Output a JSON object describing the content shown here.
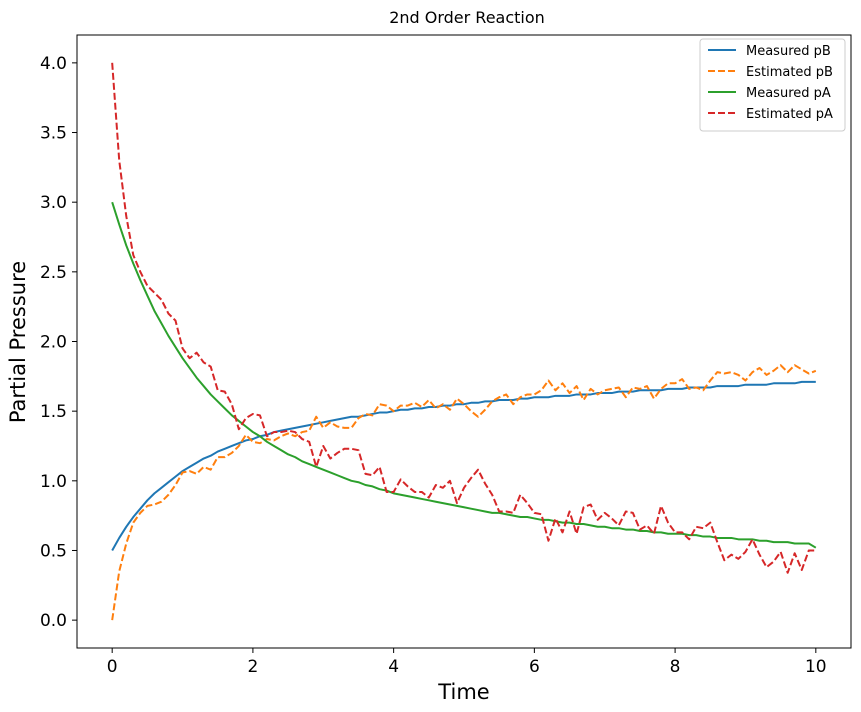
{
  "chart_data": {
    "type": "line",
    "title": "2nd Order Reaction",
    "xlabel": "Time",
    "ylabel": "Partial Pressure",
    "xlim": [
      -0.5,
      10.5
    ],
    "ylim": [
      -0.2,
      4.2
    ],
    "xticks": [
      0,
      2,
      4,
      6,
      8,
      10
    ],
    "yticks": [
      0.0,
      0.5,
      1.0,
      1.5,
      2.0,
      2.5,
      3.0,
      3.5,
      4.0
    ],
    "xtick_labels": [
      "0",
      "2",
      "4",
      "6",
      "8",
      "10"
    ],
    "ytick_labels": [
      "0.0",
      "0.5",
      "1.0",
      "1.5",
      "2.0",
      "2.5",
      "3.0",
      "3.5",
      "4.0"
    ],
    "grid": false,
    "legend_position": "top-right",
    "x": [
      0.0,
      0.1,
      0.2,
      0.3,
      0.4,
      0.5,
      0.6,
      0.7,
      0.8,
      0.9,
      1.0,
      1.1,
      1.2,
      1.3,
      1.4,
      1.5,
      1.6,
      1.7,
      1.8,
      1.9,
      2.0,
      2.1,
      2.2,
      2.3,
      2.4,
      2.5,
      2.6,
      2.7,
      2.8,
      2.9,
      3.0,
      3.1,
      3.2,
      3.3,
      3.4,
      3.5,
      3.6,
      3.7,
      3.8,
      3.9,
      4.0,
      4.1,
      4.2,
      4.3,
      4.4,
      4.5,
      4.6,
      4.7,
      4.8,
      4.9,
      5.0,
      5.1,
      5.2,
      5.3,
      5.4,
      5.5,
      5.6,
      5.7,
      5.8,
      5.9,
      6.0,
      6.1,
      6.2,
      6.3,
      6.4,
      6.5,
      6.6,
      6.7,
      6.8,
      6.9,
      7.0,
      7.1,
      7.2,
      7.3,
      7.4,
      7.5,
      7.6,
      7.7,
      7.8,
      7.9,
      8.0,
      8.1,
      8.2,
      8.3,
      8.4,
      8.5,
      8.6,
      8.7,
      8.8,
      8.9,
      9.0,
      9.1,
      9.2,
      9.3,
      9.4,
      9.5,
      9.6,
      9.7,
      9.8,
      9.9,
      10.0
    ],
    "series": [
      {
        "name": "Measured pB",
        "color": "#1f77b4",
        "dash": "solid",
        "values": [
          0.5,
          0.59,
          0.67,
          0.74,
          0.8,
          0.86,
          0.91,
          0.95,
          0.99,
          1.03,
          1.07,
          1.1,
          1.13,
          1.16,
          1.18,
          1.21,
          1.23,
          1.25,
          1.27,
          1.29,
          1.3,
          1.32,
          1.33,
          1.35,
          1.36,
          1.37,
          1.38,
          1.39,
          1.4,
          1.41,
          1.42,
          1.43,
          1.44,
          1.45,
          1.46,
          1.46,
          1.47,
          1.48,
          1.49,
          1.49,
          1.5,
          1.51,
          1.51,
          1.52,
          1.52,
          1.53,
          1.53,
          1.54,
          1.54,
          1.55,
          1.55,
          1.56,
          1.56,
          1.57,
          1.57,
          1.58,
          1.58,
          1.58,
          1.59,
          1.59,
          1.6,
          1.6,
          1.6,
          1.61,
          1.61,
          1.61,
          1.62,
          1.62,
          1.62,
          1.63,
          1.63,
          1.63,
          1.64,
          1.64,
          1.64,
          1.65,
          1.65,
          1.65,
          1.65,
          1.66,
          1.66,
          1.66,
          1.67,
          1.67,
          1.67,
          1.67,
          1.68,
          1.68,
          1.68,
          1.68,
          1.69,
          1.69,
          1.69,
          1.69,
          1.7,
          1.7,
          1.7,
          1.7,
          1.71,
          1.71,
          1.71
        ]
      },
      {
        "name": "Estimated pB",
        "color": "#ff7f0e",
        "dash": "dashed",
        "values": [
          0.0,
          0.35,
          0.55,
          0.7,
          0.77,
          0.82,
          0.83,
          0.85,
          0.9,
          0.97,
          1.06,
          1.07,
          1.05,
          1.1,
          1.08,
          1.17,
          1.17,
          1.2,
          1.25,
          1.33,
          1.28,
          1.27,
          1.3,
          1.29,
          1.32,
          1.34,
          1.32,
          1.35,
          1.36,
          1.46,
          1.38,
          1.42,
          1.39,
          1.38,
          1.38,
          1.45,
          1.48,
          1.47,
          1.55,
          1.54,
          1.5,
          1.54,
          1.54,
          1.56,
          1.53,
          1.58,
          1.52,
          1.55,
          1.51,
          1.59,
          1.55,
          1.5,
          1.46,
          1.51,
          1.57,
          1.6,
          1.62,
          1.55,
          1.6,
          1.62,
          1.62,
          1.65,
          1.72,
          1.65,
          1.7,
          1.63,
          1.68,
          1.58,
          1.66,
          1.62,
          1.65,
          1.66,
          1.67,
          1.6,
          1.67,
          1.66,
          1.68,
          1.59,
          1.66,
          1.7,
          1.7,
          1.73,
          1.66,
          1.67,
          1.65,
          1.72,
          1.78,
          1.77,
          1.78,
          1.76,
          1.72,
          1.78,
          1.81,
          1.76,
          1.79,
          1.83,
          1.78,
          1.83,
          1.8,
          1.77,
          1.79
        ]
      },
      {
        "name": "Measured pA",
        "color": "#2ca02c",
        "dash": "solid",
        "values": [
          3.0,
          2.84,
          2.69,
          2.56,
          2.44,
          2.33,
          2.22,
          2.13,
          2.04,
          1.96,
          1.88,
          1.81,
          1.74,
          1.68,
          1.62,
          1.57,
          1.52,
          1.47,
          1.43,
          1.39,
          1.35,
          1.32,
          1.28,
          1.25,
          1.22,
          1.19,
          1.17,
          1.14,
          1.12,
          1.1,
          1.08,
          1.06,
          1.04,
          1.02,
          1.0,
          0.99,
          0.97,
          0.96,
          0.94,
          0.93,
          0.91,
          0.9,
          0.89,
          0.88,
          0.87,
          0.86,
          0.85,
          0.84,
          0.83,
          0.82,
          0.81,
          0.8,
          0.79,
          0.78,
          0.77,
          0.77,
          0.76,
          0.75,
          0.74,
          0.74,
          0.73,
          0.72,
          0.72,
          0.71,
          0.7,
          0.7,
          0.69,
          0.69,
          0.68,
          0.67,
          0.67,
          0.66,
          0.66,
          0.65,
          0.65,
          0.64,
          0.64,
          0.63,
          0.63,
          0.62,
          0.62,
          0.62,
          0.61,
          0.61,
          0.6,
          0.6,
          0.59,
          0.59,
          0.59,
          0.58,
          0.58,
          0.58,
          0.57,
          0.57,
          0.56,
          0.56,
          0.56,
          0.55,
          0.55,
          0.55,
          0.52
        ]
      },
      {
        "name": "Estimated pA",
        "color": "#d62728",
        "dash": "dashed",
        "values": [
          4.0,
          3.3,
          2.9,
          2.62,
          2.5,
          2.4,
          2.35,
          2.3,
          2.2,
          2.15,
          1.95,
          1.88,
          1.92,
          1.85,
          1.82,
          1.65,
          1.64,
          1.55,
          1.37,
          1.45,
          1.48,
          1.47,
          1.32,
          1.35,
          1.35,
          1.36,
          1.35,
          1.3,
          1.28,
          1.1,
          1.25,
          1.16,
          1.2,
          1.23,
          1.23,
          1.22,
          1.05,
          1.04,
          1.1,
          0.92,
          0.92,
          1.01,
          0.96,
          0.92,
          0.92,
          0.88,
          0.97,
          0.95,
          1.0,
          0.84,
          0.95,
          1.02,
          1.08,
          0.98,
          0.9,
          0.78,
          0.78,
          0.77,
          0.9,
          0.84,
          0.77,
          0.76,
          0.57,
          0.73,
          0.63,
          0.78,
          0.62,
          0.81,
          0.83,
          0.72,
          0.77,
          0.73,
          0.68,
          0.78,
          0.77,
          0.65,
          0.68,
          0.62,
          0.82,
          0.7,
          0.63,
          0.63,
          0.58,
          0.67,
          0.66,
          0.7,
          0.56,
          0.43,
          0.47,
          0.44,
          0.49,
          0.58,
          0.47,
          0.38,
          0.42,
          0.49,
          0.34,
          0.48,
          0.36,
          0.5,
          0.5
        ]
      }
    ]
  }
}
